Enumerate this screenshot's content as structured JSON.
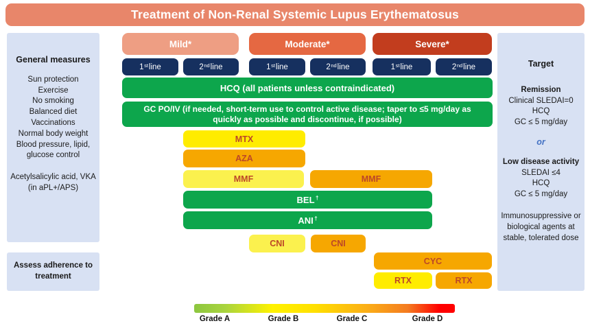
{
  "title": "Treatment of Non-Renal Systemic Lupus Erythematosus",
  "left_panel": {
    "heading": "General measures",
    "items": [
      "Sun protection",
      "Exercise",
      "No smoking",
      "Balanced diet",
      "Vaccinations",
      "Normal body weight",
      "Blood pressure, lipid, glucose control"
    ],
    "items2": [
      "Acetylsalicylic acid, VKA",
      "(in aPL+/APS)"
    ],
    "adherence": "Assess adherence to treatment"
  },
  "severity_columns": {
    "mild": "Mild*",
    "moderate": "Moderate*",
    "severe": "Severe*"
  },
  "line_buttons": {
    "first": {
      "num": "1",
      "sup": "st",
      "word": " line"
    },
    "second": {
      "num": "2",
      "sup": "nd",
      "word": " line"
    }
  },
  "bars": {
    "hcq": "HCQ (all patients unless contraindicated)",
    "gc": "GC PO/IV (if needed, short-term use to control active disease; taper to ≤5 mg/day as quickly as possible and discontinue, if possible)",
    "mtx": "MTX",
    "aza": "AZA",
    "mmf_first_line": "MMF",
    "mmf_second_line": "MMF",
    "bel": {
      "label": "BEL",
      "sup": "†"
    },
    "ani": {
      "label": "ANI",
      "sup": "†"
    },
    "cni_first_line": "CNI",
    "cni_second_line": "CNI",
    "cyc": "CYC",
    "rtx_first_line": "RTX",
    "rtx_second_line": "RTX"
  },
  "right_panel": {
    "heading": "Target",
    "remission_heading": "Remission",
    "remission_items": [
      "Clinical SLEDAI=0",
      "HCQ",
      "GC ≤ 5 mg/day"
    ],
    "or_label": "or",
    "lda_heading": "Low disease activity",
    "lda_items": [
      "SLEDAI ≤4",
      "HCQ",
      "GC ≤ 5 mg/day"
    ],
    "note": "Immunosuppressive or biological agents at stable, tolerated dose"
  },
  "legend": {
    "grades": [
      "Grade A",
      "Grade B",
      "Grade C",
      "Grade D"
    ]
  },
  "colors": {
    "title_bg": "#E8866A",
    "mild_bg": "#EE9E83",
    "moderate_bg": "#E56842",
    "severe_bg": "#C23D1E",
    "line_button_bg": "#16305F",
    "green_bar": "#0DA64C",
    "bright_yellow_bar": "#FFEC00",
    "pale_yellow_bar": "#FBF14E",
    "orange_bar": "#F6A701",
    "bar_text": "#BC4728",
    "panel_bg": "#D8E1F3",
    "or_text": "#4472C4",
    "gradient": [
      "#8CC63F",
      "#FFF200",
      "#FBAF17",
      "#FF0000"
    ]
  }
}
